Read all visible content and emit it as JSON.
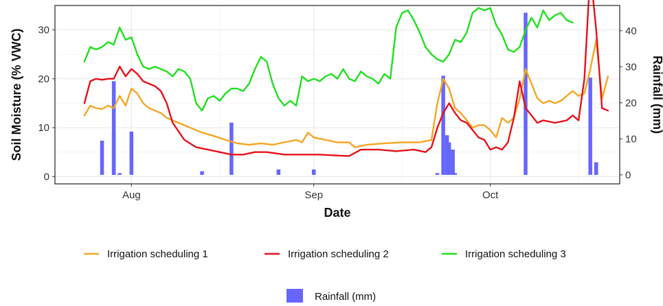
{
  "chart_data": {
    "type": "line",
    "xlabel": "Date",
    "ylabel": "Soil Moisture (% VWC)",
    "y2label": "Rainfall (mm)",
    "x_ticks": [
      {
        "label": "Aug",
        "date": "08-01"
      },
      {
        "label": "Sep",
        "date": "09-01"
      },
      {
        "label": "Oct",
        "date": "10-01"
      }
    ],
    "ylim": [
      -1.5,
      35
    ],
    "y_ticks": [
      0,
      10,
      20,
      30
    ],
    "y2lim": [
      -2.5,
      47
    ],
    "y2_ticks": [
      0,
      10,
      20,
      30,
      40
    ],
    "grid": true,
    "legend_position": "bottom",
    "colors": {
      "series1": "#f5a623",
      "series2": "#e8101a",
      "series3": "#1fe01f",
      "rainfall": "#6666ff",
      "panel_border": "#333333",
      "grid": "#e6e6e6"
    },
    "series": [
      {
        "name": "Irrigation scheduling 1",
        "points": [
          [
            "07-24",
            12.5
          ],
          [
            "07-25",
            14.5
          ],
          [
            "07-26",
            14.0
          ],
          [
            "07-27",
            13.8
          ],
          [
            "07-28",
            14.5
          ],
          [
            "07-29",
            14.0
          ],
          [
            "07-30",
            16.5
          ],
          [
            "07-31",
            14.5
          ],
          [
            "08-01",
            18.0
          ],
          [
            "08-02",
            17.0
          ],
          [
            "08-03",
            15.0
          ],
          [
            "08-04",
            14.0
          ],
          [
            "08-05",
            13.5
          ],
          [
            "08-06",
            13.0
          ],
          [
            "08-07",
            12.0
          ],
          [
            "08-09",
            11.0
          ],
          [
            "08-11",
            10.0
          ],
          [
            "08-13",
            9.0
          ],
          [
            "08-15",
            8.3
          ],
          [
            "08-17",
            7.5
          ],
          [
            "08-19",
            6.8
          ],
          [
            "08-21",
            6.5
          ],
          [
            "08-23",
            6.8
          ],
          [
            "08-25",
            6.5
          ],
          [
            "08-27",
            7.0
          ],
          [
            "08-29",
            7.5
          ],
          [
            "08-30",
            7.0
          ],
          [
            "08-31",
            9.0
          ],
          [
            "09-01",
            8.0
          ],
          [
            "09-03",
            7.5
          ],
          [
            "09-05",
            7.0
          ],
          [
            "09-07",
            7.0
          ],
          [
            "09-08",
            6.0
          ],
          [
            "09-10",
            6.5
          ],
          [
            "09-13",
            6.8
          ],
          [
            "09-16",
            7.0
          ],
          [
            "09-19",
            7.0
          ],
          [
            "09-21",
            7.5
          ],
          [
            "09-22",
            15.0
          ],
          [
            "09-23",
            20.0
          ],
          [
            "09-24",
            18.0
          ],
          [
            "09-25",
            14.0
          ],
          [
            "09-26",
            13.0
          ],
          [
            "09-27",
            11.5
          ],
          [
            "09-28",
            10.0
          ],
          [
            "09-29",
            10.5
          ],
          [
            "09-30",
            10.5
          ],
          [
            "10-01",
            9.5
          ],
          [
            "10-02",
            8.0
          ],
          [
            "10-03",
            12.0
          ],
          [
            "10-04",
            11.0
          ],
          [
            "10-05",
            12.0
          ],
          [
            "10-06",
            16.0
          ],
          [
            "10-07",
            22.0
          ],
          [
            "10-08",
            19.0
          ],
          [
            "10-09",
            16.0
          ],
          [
            "10-10",
            15.0
          ],
          [
            "10-11",
            15.5
          ],
          [
            "10-12",
            15.0
          ],
          [
            "10-13",
            15.5
          ],
          [
            "10-15",
            17.5
          ],
          [
            "10-16",
            16.5
          ],
          [
            "10-17",
            17.0
          ],
          [
            "10-18",
            22.0
          ],
          [
            "10-19",
            28.0
          ],
          [
            "10-20",
            16.0
          ],
          [
            "10-21",
            20.5
          ]
        ]
      },
      {
        "name": "Irrigation scheduling 2",
        "points": [
          [
            "07-24",
            15.0
          ],
          [
            "07-25",
            19.5
          ],
          [
            "07-26",
            20.0
          ],
          [
            "07-27",
            19.8
          ],
          [
            "07-28",
            20.0
          ],
          [
            "07-29",
            20.0
          ],
          [
            "07-30",
            22.5
          ],
          [
            "07-31",
            20.5
          ],
          [
            "08-01",
            22.0
          ],
          [
            "08-02",
            21.0
          ],
          [
            "08-03",
            19.5
          ],
          [
            "08-04",
            19.0
          ],
          [
            "08-05",
            18.5
          ],
          [
            "08-06",
            17.5
          ],
          [
            "08-07",
            15.0
          ],
          [
            "08-08",
            11.0
          ],
          [
            "08-10",
            7.5
          ],
          [
            "08-12",
            6.0
          ],
          [
            "08-14",
            5.5
          ],
          [
            "08-16",
            5.0
          ],
          [
            "08-18",
            4.5
          ],
          [
            "08-20",
            4.5
          ],
          [
            "08-22",
            5.0
          ],
          [
            "08-24",
            5.0
          ],
          [
            "08-27",
            4.5
          ],
          [
            "08-30",
            4.5
          ],
          [
            "09-02",
            4.5
          ],
          [
            "09-05",
            4.3
          ],
          [
            "09-07",
            4.2
          ],
          [
            "09-09",
            5.5
          ],
          [
            "09-12",
            5.5
          ],
          [
            "09-15",
            5.2
          ],
          [
            "09-18",
            5.5
          ],
          [
            "09-20",
            5.0
          ],
          [
            "09-21",
            6.0
          ],
          [
            "09-22",
            10.0
          ],
          [
            "09-23",
            13.0
          ],
          [
            "09-24",
            15.0
          ],
          [
            "09-25",
            13.0
          ],
          [
            "09-26",
            11.5
          ],
          [
            "09-27",
            11.0
          ],
          [
            "09-28",
            9.5
          ],
          [
            "09-29",
            8.0
          ],
          [
            "09-30",
            7.5
          ],
          [
            "10-01",
            5.5
          ],
          [
            "10-02",
            6.0
          ],
          [
            "10-03",
            5.5
          ],
          [
            "10-04",
            7.0
          ],
          [
            "10-05",
            12.0
          ],
          [
            "10-06",
            19.5
          ],
          [
            "10-07",
            14.0
          ],
          [
            "10-08",
            12.5
          ],
          [
            "10-09",
            11.0
          ],
          [
            "10-10",
            11.5
          ],
          [
            "10-12",
            11.0
          ],
          [
            "10-14",
            11.5
          ],
          [
            "10-15",
            12.5
          ],
          [
            "10-16",
            11.5
          ],
          [
            "10-17",
            20.0
          ],
          [
            "10-18",
            42.0
          ],
          [
            "10-19",
            30.0
          ],
          [
            "10-20",
            14.0
          ],
          [
            "10-21",
            13.5
          ]
        ]
      },
      {
        "name": "Irrigation scheduling 3",
        "points": [
          [
            "07-24",
            23.5
          ],
          [
            "07-25",
            26.5
          ],
          [
            "07-26",
            26.0
          ],
          [
            "07-27",
            26.5
          ],
          [
            "07-28",
            27.5
          ],
          [
            "07-29",
            27.0
          ],
          [
            "07-30",
            30.5
          ],
          [
            "07-31",
            28.0
          ],
          [
            "08-01",
            28.5
          ],
          [
            "08-02",
            25.0
          ],
          [
            "08-03",
            22.5
          ],
          [
            "08-04",
            22.0
          ],
          [
            "08-05",
            22.5
          ],
          [
            "08-06",
            22.0
          ],
          [
            "08-07",
            21.5
          ],
          [
            "08-08",
            20.5
          ],
          [
            "08-09",
            22.0
          ],
          [
            "08-10",
            21.5
          ],
          [
            "08-11",
            20.0
          ],
          [
            "08-12",
            15.0
          ],
          [
            "08-13",
            13.5
          ],
          [
            "08-14",
            16.0
          ],
          [
            "08-15",
            16.5
          ],
          [
            "08-16",
            15.5
          ],
          [
            "08-17",
            17.0
          ],
          [
            "08-18",
            18.0
          ],
          [
            "08-19",
            18.0
          ],
          [
            "08-20",
            17.5
          ],
          [
            "08-21",
            19.0
          ],
          [
            "08-22",
            22.0
          ],
          [
            "08-23",
            24.5
          ],
          [
            "08-24",
            23.5
          ],
          [
            "08-25",
            19.0
          ],
          [
            "08-26",
            16.0
          ],
          [
            "08-27",
            14.5
          ],
          [
            "08-28",
            15.5
          ],
          [
            "08-29",
            14.5
          ],
          [
            "08-30",
            20.5
          ],
          [
            "08-31",
            19.5
          ],
          [
            "09-01",
            20.0
          ],
          [
            "09-02",
            19.5
          ],
          [
            "09-03",
            20.5
          ],
          [
            "09-04",
            21.0
          ],
          [
            "09-05",
            20.0
          ],
          [
            "09-06",
            22.0
          ],
          [
            "09-07",
            20.0
          ],
          [
            "09-08",
            19.5
          ],
          [
            "09-09",
            21.5
          ],
          [
            "09-10",
            20.5
          ],
          [
            "09-11",
            20.0
          ],
          [
            "09-12",
            19.0
          ],
          [
            "09-13",
            21.0
          ],
          [
            "09-14",
            20.0
          ],
          [
            "09-15",
            30.5
          ],
          [
            "09-16",
            33.5
          ],
          [
            "09-17",
            34.0
          ],
          [
            "09-18",
            32.0
          ],
          [
            "09-19",
            29.5
          ],
          [
            "09-20",
            26.5
          ],
          [
            "09-21",
            25.0
          ],
          [
            "09-22",
            24.0
          ],
          [
            "09-23",
            23.5
          ],
          [
            "09-24",
            25.0
          ],
          [
            "09-25",
            28.0
          ],
          [
            "09-26",
            27.5
          ],
          [
            "09-27",
            29.5
          ],
          [
            "09-28",
            33.5
          ],
          [
            "09-29",
            34.5
          ],
          [
            "09-30",
            34.0
          ],
          [
            "10-01",
            34.5
          ],
          [
            "10-02",
            31.0
          ],
          [
            "10-03",
            29.0
          ],
          [
            "10-04",
            26.0
          ],
          [
            "10-05",
            25.5
          ],
          [
            "10-06",
            26.5
          ],
          [
            "10-07",
            30.0
          ],
          [
            "10-08",
            32.5
          ],
          [
            "10-09",
            30.5
          ],
          [
            "10-10",
            34.0
          ],
          [
            "10-11",
            32.0
          ],
          [
            "10-12",
            33.0
          ],
          [
            "10-13",
            33.5
          ],
          [
            "10-14",
            32.0
          ],
          [
            "10-15",
            31.5
          ]
        ]
      }
    ],
    "rainfall": {
      "name": "Rainfall (mm)",
      "bars": [
        [
          "07-27",
          9.5
        ],
        [
          "07-29",
          26.0
        ],
        [
          "07-29",
          12.0
        ],
        [
          "07-30",
          0.5
        ],
        [
          "08-01",
          12.0
        ],
        [
          "08-13",
          1.0
        ],
        [
          "08-18",
          14.5
        ],
        [
          "08-26",
          1.5
        ],
        [
          "09-01",
          1.5
        ],
        [
          "09-22",
          0.5
        ],
        [
          "09-23",
          27.5
        ],
        [
          "09-23",
          11.0
        ],
        [
          "09-24",
          9.0
        ],
        [
          "09-24",
          7.0
        ],
        [
          "09-25",
          0.5
        ],
        [
          "10-07",
          45.0
        ],
        [
          "10-18",
          27.0
        ],
        [
          "10-19",
          3.5
        ]
      ]
    }
  }
}
